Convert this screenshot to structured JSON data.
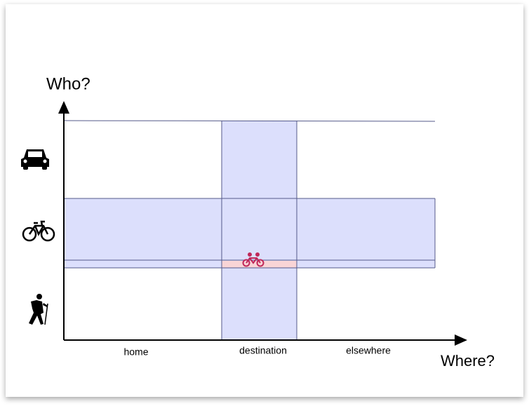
{
  "axes": {
    "y_label": "Who?",
    "x_label": "Where?"
  },
  "columns": [
    "home",
    "destination",
    "elsewhere"
  ]
}
